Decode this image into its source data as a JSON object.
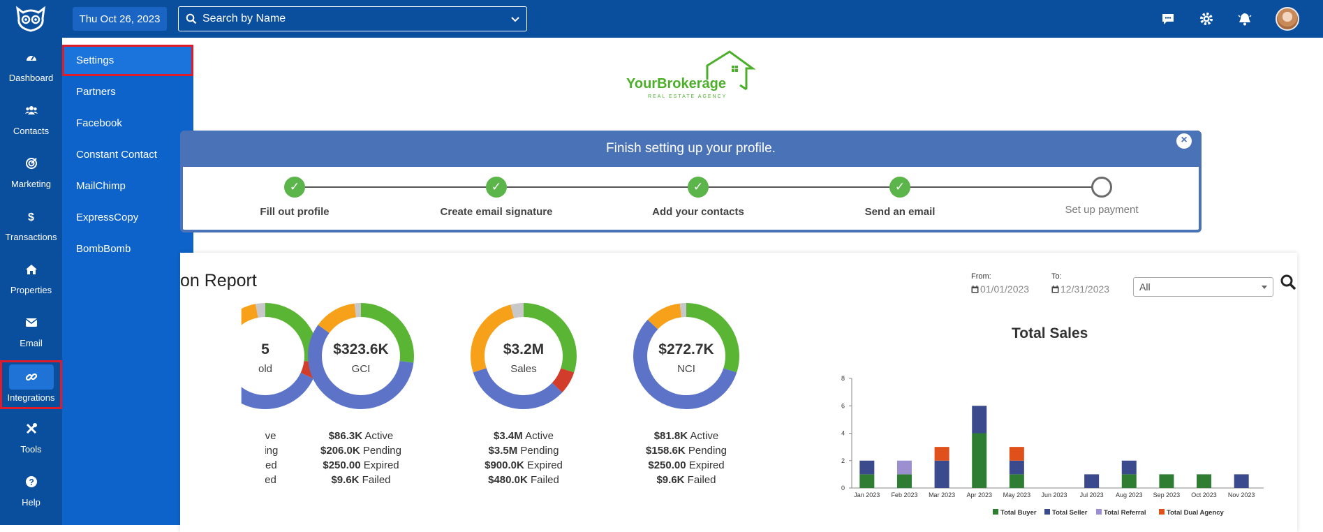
{
  "topbar": {
    "date": "Thu Oct 26, 2023",
    "search_placeholder": "Search by Name"
  },
  "rail": {
    "items": [
      {
        "label": "Dashboard",
        "icon": "dashboard-icon"
      },
      {
        "label": "Contacts",
        "icon": "contacts-icon"
      },
      {
        "label": "Marketing",
        "icon": "marketing-icon"
      },
      {
        "label": "Transactions",
        "icon": "dollar-icon"
      },
      {
        "label": "Properties",
        "icon": "home-icon"
      },
      {
        "label": "Email",
        "icon": "envelope-icon"
      },
      {
        "label": "Integrations",
        "icon": "link-icon"
      },
      {
        "label": "Tools",
        "icon": "tools-icon"
      },
      {
        "label": "Help",
        "icon": "help-icon"
      }
    ],
    "active": "Integrations"
  },
  "flyout": {
    "items": [
      "Settings",
      "Partners",
      "Facebook",
      "Constant Contact",
      "MailChimp",
      "ExpressCopy",
      "BombBomb"
    ],
    "selected": "Settings"
  },
  "brand": {
    "name": "YourBrokerage",
    "tagline": "REAL ESTATE AGENCY"
  },
  "onboarding": {
    "title": "Finish setting up your profile.",
    "steps": [
      {
        "label": "Fill out profile",
        "done": true
      },
      {
        "label": "Create email signature",
        "done": true
      },
      {
        "label": "Add your contacts",
        "done": true
      },
      {
        "label": "Send an email",
        "done": true
      },
      {
        "label": "Set up payment",
        "done": false
      }
    ]
  },
  "report": {
    "title_visible": "on Report",
    "from_label": "From:",
    "to_label": "To:",
    "from_date": "01/01/2023",
    "to_date": "12/31/2023",
    "filter": "All"
  },
  "donuts": [
    {
      "value": "5",
      "sub": "old",
      "stats": [
        {
          "v": "",
          "t": "ctive"
        },
        {
          "v": "",
          "t": "nding"
        },
        {
          "v": "",
          "t": "pired"
        },
        {
          "v": "",
          "t": "ailed"
        }
      ]
    },
    {
      "value": "$323.6K",
      "sub": "GCI",
      "stats": [
        {
          "v": "$86.3K",
          "t": "Active"
        },
        {
          "v": "$206.0K",
          "t": "Pending"
        },
        {
          "v": "$250.00",
          "t": "Expired"
        },
        {
          "v": "$9.6K",
          "t": "Failed"
        }
      ]
    },
    {
      "value": "$3.2M",
      "sub": "Sales",
      "stats": [
        {
          "v": "$3.4M",
          "t": "Active"
        },
        {
          "v": "$3.5M",
          "t": "Pending"
        },
        {
          "v": "$900.0K",
          "t": "Expired"
        },
        {
          "v": "$480.0K",
          "t": "Failed"
        }
      ]
    },
    {
      "value": "$272.7K",
      "sub": "NCI",
      "stats": [
        {
          "v": "$81.8K",
          "t": "Active"
        },
        {
          "v": "$158.6K",
          "t": "Pending"
        },
        {
          "v": "$250.00",
          "t": "Expired"
        },
        {
          "v": "$9.6K",
          "t": "Failed"
        }
      ]
    }
  ],
  "colors": {
    "navy": "#0a4e9e",
    "active_green": "#5bb534",
    "pending_blue": "#5c73c8",
    "expired_orange": "#f7a11a",
    "failed_red": "#d23c2a",
    "grey": "#c8c8c8",
    "buyer": "#2e7d32",
    "seller": "#3b4a8c",
    "referral": "#9c8fd0",
    "dual": "#e0501b"
  },
  "chart_data": {
    "type": "bar",
    "title": "Total Sales",
    "categories": [
      "Jan 2023",
      "Feb 2023",
      "Mar 2023",
      "Apr 2023",
      "May 2023",
      "Jun 2023",
      "Jul 2023",
      "Aug 2023",
      "Sep 2023",
      "Oct 2023",
      "Nov 2023"
    ],
    "series": [
      {
        "name": "Total Buyer",
        "values": [
          1,
          1,
          0,
          4,
          1,
          0,
          0,
          1,
          1,
          1,
          0
        ]
      },
      {
        "name": "Total Seller",
        "values": [
          1,
          0,
          2,
          2,
          1,
          0,
          1,
          1,
          0,
          0,
          1
        ]
      },
      {
        "name": "Total Referral",
        "values": [
          0,
          1,
          0,
          0,
          0,
          0,
          0,
          0,
          0,
          0,
          0
        ]
      },
      {
        "name": "Total Dual Agency",
        "values": [
          0,
          0,
          1,
          0,
          1,
          0,
          0,
          0,
          0,
          0,
          0
        ]
      }
    ],
    "ylim": [
      0,
      8
    ],
    "yticks": [
      0,
      2,
      4,
      6,
      8
    ],
    "stacked": true,
    "legend": "bottom"
  }
}
